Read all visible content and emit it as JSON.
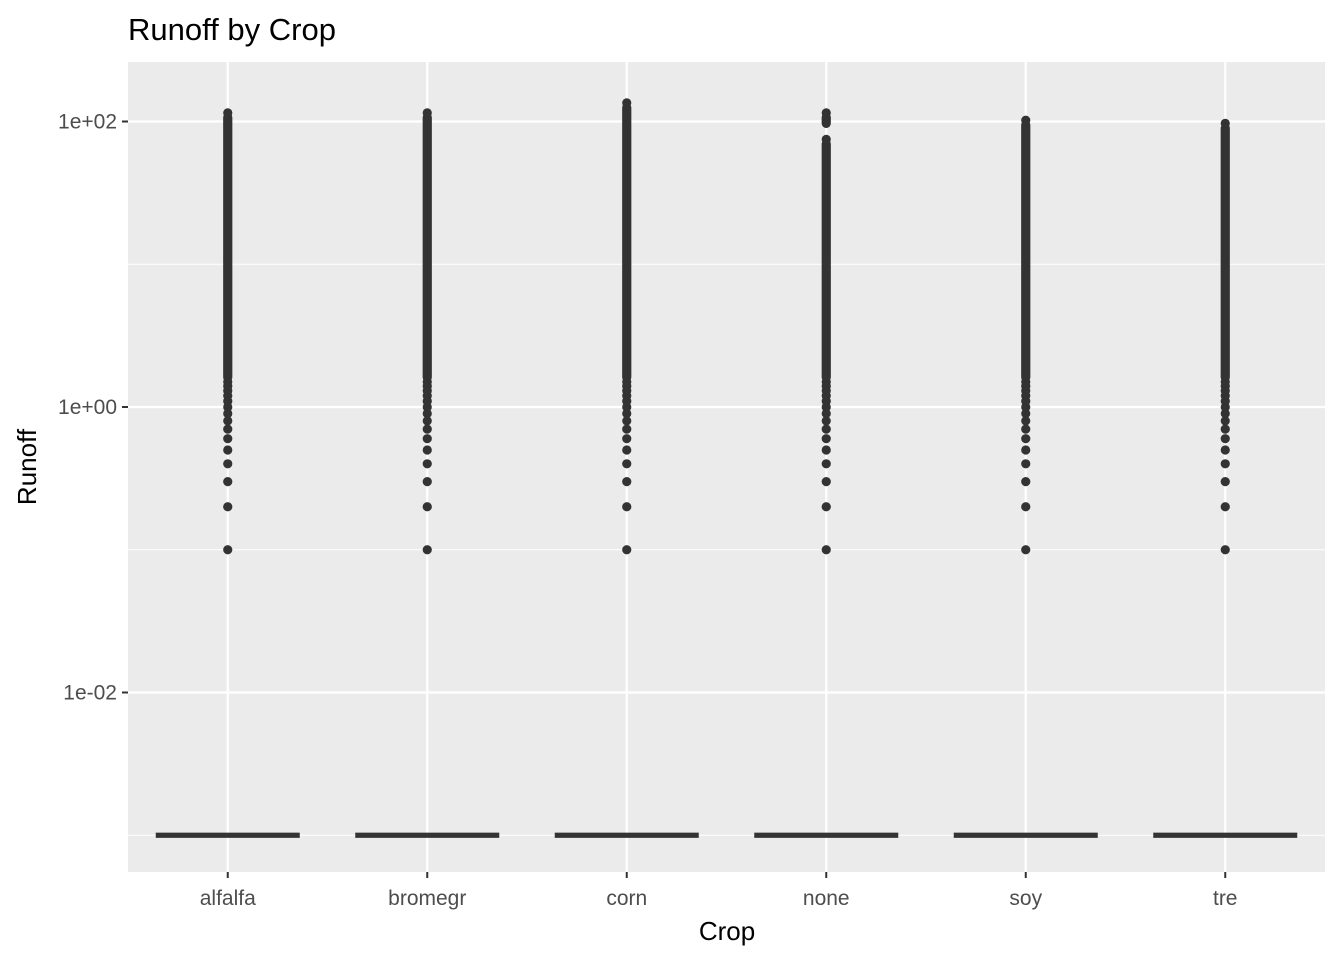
{
  "chart_data": {
    "type": "boxplot",
    "title": "Runoff by Crop",
    "xlabel": "Crop",
    "ylabel": "Runoff",
    "y_scale": "log10",
    "ylim": [
      0.0005,
      250
    ],
    "y_ticks": [
      {
        "value": 0.01,
        "label": "1e-02"
      },
      {
        "value": 1,
        "label": "1e+00"
      },
      {
        "value": 100,
        "label": "1e+02"
      }
    ],
    "y_minor_ticks": [
      0.001,
      0.1,
      10
    ],
    "categories": [
      "alfalfa",
      "bromegr",
      "corn",
      "none",
      "soy",
      "tre"
    ],
    "box_value": 0.001,
    "outliers": [
      {
        "category": "alfalfa",
        "min": 0.1,
        "max": 115,
        "gap": []
      },
      {
        "category": "bromegr",
        "min": 0.1,
        "max": 115,
        "gap": []
      },
      {
        "category": "corn",
        "min": 0.1,
        "max": 135,
        "gap": []
      },
      {
        "category": "none",
        "min": 0.1,
        "max": 115,
        "gap": [
          75,
          90
        ]
      },
      {
        "category": "soy",
        "min": 0.1,
        "max": 102,
        "gap": []
      },
      {
        "category": "tre",
        "min": 0.1,
        "max": 97,
        "gap": []
      }
    ],
    "discrete_low_values": [
      0.1,
      0.2,
      0.3,
      0.4,
      0.5,
      0.6,
      0.7,
      0.8,
      0.9,
      1.0,
      1.1,
      1.2,
      1.3,
      1.4,
      1.5
    ],
    "colors": {
      "panel": "#ebebeb",
      "grid": "#ffffff",
      "marks": "#333333",
      "tick_label": "#4d4d4d",
      "axis_tick": "#333333"
    }
  }
}
